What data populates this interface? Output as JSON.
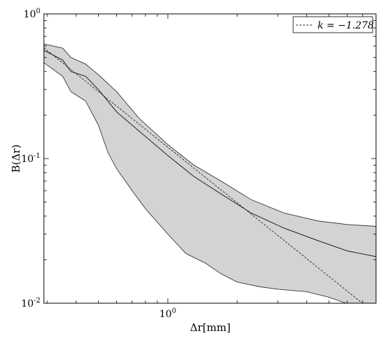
{
  "chart_data": {
    "type": "line",
    "xlabel": "Δr[mm]",
    "ylabel": "B(Δr)",
    "xscale": "log",
    "yscale": "log",
    "xlim": [
      0.29,
      8.0
    ],
    "ylim": [
      0.01,
      1.0
    ],
    "x_tick_labels": [
      {
        "value": 1,
        "base": "10",
        "exp": "0"
      }
    ],
    "y_tick_labels": [
      {
        "value": 1,
        "base": "10",
        "exp": "0"
      },
      {
        "value": 0.1,
        "base": "10",
        "exp": "-1"
      },
      {
        "value": 0.01,
        "base": "10",
        "exp": "-2"
      }
    ],
    "grid": false,
    "legend": {
      "position": "top-right",
      "entries": [
        {
          "label": "k = −1.278",
          "style": "dashed"
        }
      ]
    },
    "band_upper": {
      "x": [
        0.29,
        0.35,
        0.38,
        0.44,
        0.5,
        0.6,
        0.75,
        1.0,
        1.3,
        1.7,
        2.3,
        3.2,
        4.5,
        6.0,
        8.0
      ],
      "y": [
        0.62,
        0.58,
        0.5,
        0.45,
        0.38,
        0.29,
        0.19,
        0.125,
        0.09,
        0.07,
        0.052,
        0.042,
        0.037,
        0.035,
        0.034
      ]
    },
    "band_lower": {
      "x": [
        0.29,
        0.35,
        0.38,
        0.44,
        0.5,
        0.55,
        0.6,
        0.7,
        0.8,
        1.0,
        1.2,
        1.45,
        1.7,
        2.0,
        2.5,
        3.0,
        4.0,
        5.0,
        6.5,
        8.0
      ],
      "y": [
        0.46,
        0.37,
        0.29,
        0.25,
        0.17,
        0.11,
        0.085,
        0.06,
        0.045,
        0.03,
        0.022,
        0.019,
        0.016,
        0.014,
        0.013,
        0.0125,
        0.012,
        0.011,
        0.0095,
        0.0085
      ]
    },
    "series": [
      {
        "type": "line",
        "style": "solid",
        "x": [
          0.29,
          0.35,
          0.38,
          0.44,
          0.5,
          0.6,
          0.75,
          1.0,
          1.3,
          1.7,
          2.3,
          3.2,
          4.5,
          6.0,
          8.0
        ],
        "y": [
          0.56,
          0.48,
          0.4,
          0.37,
          0.3,
          0.21,
          0.155,
          0.105,
          0.075,
          0.057,
          0.042,
          0.033,
          0.027,
          0.023,
          0.021
        ]
      },
      {
        "name": "k = −1.278",
        "type": "line",
        "style": "dashed",
        "slope": -1.278,
        "x": [
          0.29,
          8.0
        ],
        "y": [
          0.583,
          0.0084
        ]
      }
    ]
  }
}
